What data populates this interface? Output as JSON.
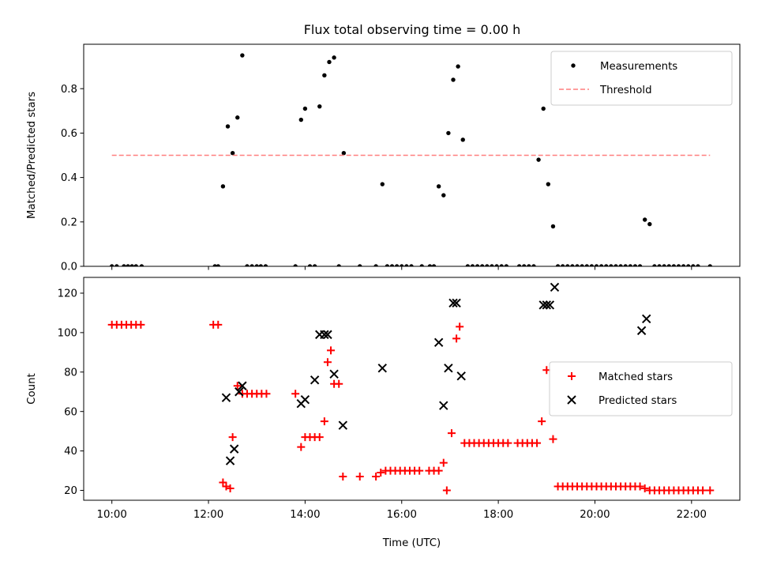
{
  "chart_data": [
    {
      "type": "scatter",
      "title": "Flux total observing time = 0.00 h",
      "xlabel": "",
      "ylabel": "Matched/Predicted stars",
      "xlim": [
        "09:25",
        "23:00"
      ],
      "ylim": [
        0,
        1.0
      ],
      "yticks": [
        "0.0",
        "0.2",
        "0.4",
        "0.6",
        "0.8"
      ],
      "grid": false,
      "legend_position": "top-right",
      "series": [
        {
          "name": "Measurements",
          "color": "#000000",
          "marker": "dot",
          "x": [
            "10:00",
            "10:06",
            "10:15",
            "10:20",
            "10:25",
            "10:30",
            "10:37",
            "12:08",
            "12:12",
            "12:18",
            "12:24",
            "12:30",
            "12:36",
            "12:42",
            "12:48",
            "12:54",
            "13:00",
            "13:05",
            "13:11",
            "13:48",
            "13:55",
            "14:00",
            "14:06",
            "14:12",
            "14:18",
            "14:24",
            "14:30",
            "14:36",
            "14:42",
            "14:48",
            "15:08",
            "15:28",
            "15:36",
            "15:42",
            "15:48",
            "15:54",
            "16:00",
            "16:06",
            "16:12",
            "16:25",
            "16:35",
            "16:40",
            "16:46",
            "16:52",
            "16:58",
            "17:04",
            "17:10",
            "17:16",
            "17:22",
            "17:28",
            "17:34",
            "17:40",
            "17:46",
            "17:52",
            "17:58",
            "18:04",
            "18:10",
            "18:26",
            "18:32",
            "18:38",
            "18:44",
            "18:50",
            "18:56",
            "19:02",
            "19:08",
            "19:14",
            "19:20",
            "19:26",
            "19:32",
            "19:38",
            "19:44",
            "19:50",
            "19:56",
            "20:02",
            "20:08",
            "20:14",
            "20:20",
            "20:26",
            "20:32",
            "20:38",
            "20:44",
            "20:50",
            "20:56",
            "21:02",
            "21:08",
            "21:14",
            "21:20",
            "21:26",
            "21:32",
            "21:38",
            "21:44",
            "21:50",
            "21:56",
            "22:02",
            "22:08",
            "22:23"
          ],
          "y": [
            0,
            0,
            0,
            0,
            0,
            0,
            0,
            0,
            0,
            0.36,
            0.63,
            0.51,
            0.67,
            0.95,
            0,
            0,
            0,
            0,
            0,
            0,
            0.66,
            0.71,
            0,
            0,
            0.72,
            0.86,
            0.92,
            0.94,
            0,
            0.51,
            0,
            0,
            0.37,
            0,
            0,
            0,
            0,
            0,
            0,
            0,
            0,
            0,
            0.36,
            0.32,
            0.6,
            0.84,
            0.9,
            0.57,
            0,
            0,
            0,
            0,
            0,
            0,
            0,
            0,
            0,
            0,
            0,
            0,
            0,
            0.48,
            0.71,
            0.37,
            0.18,
            0,
            0,
            0,
            0,
            0,
            0,
            0,
            0,
            0,
            0,
            0,
            0,
            0,
            0,
            0,
            0,
            0,
            0,
            0.21,
            0.19,
            0,
            0,
            0,
            0,
            0,
            0,
            0,
            0,
            0,
            0,
            0
          ]
        },
        {
          "name": "Threshold",
          "color": "#ff7f7f",
          "style": "dashed",
          "x": [
            "10:00",
            "22:23"
          ],
          "y": [
            0.5,
            0.5
          ]
        }
      ]
    },
    {
      "type": "scatter",
      "title": "",
      "xlabel": "Time (UTC)",
      "ylabel": "Count",
      "xlim": [
        "09:25",
        "23:00"
      ],
      "ylim": [
        15,
        128
      ],
      "xticks": [
        "10:00",
        "12:00",
        "14:00",
        "16:00",
        "18:00",
        "20:00",
        "22:00"
      ],
      "yticks": [
        "20",
        "40",
        "60",
        "80",
        "100",
        "120"
      ],
      "grid": false,
      "legend_position": "center-right",
      "series": [
        {
          "name": "Matched stars",
          "color": "#ff0000",
          "marker": "plus",
          "x": [
            "10:00",
            "10:06",
            "10:12",
            "10:18",
            "10:24",
            "10:30",
            "10:36",
            "12:06",
            "12:12",
            "12:18",
            "12:22",
            "12:27",
            "12:30",
            "12:36",
            "12:42",
            "12:48",
            "12:54",
            "13:00",
            "13:06",
            "13:12",
            "13:48",
            "13:55",
            "14:00",
            "14:06",
            "14:12",
            "14:18",
            "14:24",
            "14:28",
            "14:32",
            "14:36",
            "14:42",
            "14:47",
            "15:08",
            "15:28",
            "15:34",
            "15:40",
            "15:46",
            "15:52",
            "15:58",
            "16:04",
            "16:10",
            "16:16",
            "16:22",
            "16:34",
            "16:40",
            "16:46",
            "16:52",
            "16:56",
            "17:02",
            "17:08",
            "17:12",
            "17:18",
            "17:24",
            "17:30",
            "17:36",
            "17:42",
            "17:48",
            "17:54",
            "18:00",
            "18:06",
            "18:12",
            "18:24",
            "18:30",
            "18:36",
            "18:42",
            "18:48",
            "18:54",
            "19:00",
            "19:08",
            "19:14",
            "19:20",
            "19:26",
            "19:32",
            "19:38",
            "19:44",
            "19:50",
            "19:56",
            "20:02",
            "20:08",
            "20:14",
            "20:20",
            "20:26",
            "20:32",
            "20:38",
            "20:44",
            "20:50",
            "20:56",
            "21:02",
            "21:08",
            "21:14",
            "21:20",
            "21:26",
            "21:32",
            "21:38",
            "21:44",
            "21:50",
            "21:56",
            "22:02",
            "22:08",
            "22:14",
            "22:23"
          ],
          "y": [
            104,
            104,
            104,
            104,
            104,
            104,
            104,
            104,
            104,
            24,
            22,
            21,
            47,
            73,
            69,
            69,
            69,
            69,
            69,
            69,
            69,
            42,
            47,
            47,
            47,
            47,
            55,
            85,
            91,
            74,
            74,
            27,
            27,
            27,
            29,
            30,
            30,
            30,
            30,
            30,
            30,
            30,
            30,
            30,
            30,
            30,
            34,
            20,
            49,
            97,
            103,
            44,
            44,
            44,
            44,
            44,
            44,
            44,
            44,
            44,
            44,
            44,
            44,
            44,
            44,
            44,
            55,
            81,
            46,
            22,
            22,
            22,
            22,
            22,
            22,
            22,
            22,
            22,
            22,
            22,
            22,
            22,
            22,
            22,
            22,
            22,
            22,
            21,
            20,
            20,
            20,
            20,
            20,
            20,
            20,
            20,
            20,
            20,
            20,
            20,
            20
          ]
        },
        {
          "name": "Predicted stars",
          "color": "#000000",
          "marker": "x",
          "x": [
            "12:22",
            "12:27",
            "12:32",
            "12:38",
            "12:42",
            "13:55",
            "14:00",
            "14:12",
            "14:18",
            "14:24",
            "14:28",
            "14:36",
            "14:47",
            "15:36",
            "16:46",
            "16:52",
            "16:58",
            "17:04",
            "17:08",
            "17:14",
            "18:56",
            "19:00",
            "19:04",
            "19:10",
            "20:58",
            "21:04"
          ],
          "y": [
            67,
            35,
            41,
            70,
            73,
            64,
            66,
            76,
            99,
            99,
            99,
            79,
            53,
            82,
            95,
            63,
            82,
            115,
            115,
            78,
            114,
            114,
            114,
            123,
            101,
            107
          ]
        }
      ]
    }
  ]
}
